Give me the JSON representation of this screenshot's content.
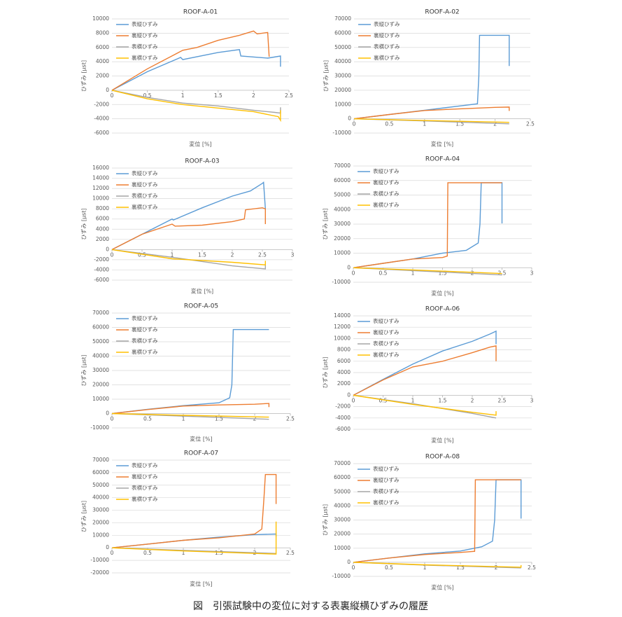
{
  "chart_data": [
    {
      "type": "line",
      "title": "ROOF-A-01",
      "x_label": "変位 [%]",
      "y_label": "ひずみ [μst]",
      "xlim": [
        0,
        2.5
      ],
      "xticks": [
        0,
        0.5,
        1,
        1.5,
        2,
        2.5
      ],
      "ylim": [
        -6000,
        10000
      ],
      "yticks": [
        -6000,
        -4000,
        -2000,
        0,
        2000,
        4000,
        6000,
        8000,
        10000
      ],
      "grid": true,
      "series": [
        {
          "name": "表縦ひずみ",
          "color": "#5b9bd5",
          "x": [
            0,
            0.5,
            0.97,
            1.0,
            1.5,
            1.8,
            1.82,
            2.2,
            2.38,
            2.38
          ],
          "values": [
            0,
            2600,
            4600,
            4300,
            5300,
            5700,
            4800,
            4500,
            4800,
            3300
          ]
        },
        {
          "name": "裏縦ひずみ",
          "color": "#ed7d31",
          "x": [
            0,
            0.5,
            1.0,
            1.2,
            1.5,
            1.8,
            2.0,
            2.05,
            2.2,
            2.22
          ],
          "values": [
            0,
            3000,
            5600,
            6000,
            7000,
            7700,
            8300,
            7900,
            8100,
            4700
          ]
        },
        {
          "name": "表横ひずみ",
          "color": "#a5a5a5",
          "x": [
            0,
            0.5,
            1.0,
            1.5,
            2.0,
            2.3,
            2.38,
            2.38
          ],
          "values": [
            0,
            -1000,
            -1800,
            -2200,
            -2800,
            -3100,
            -3200,
            -2400
          ]
        },
        {
          "name": "裏横ひずみ",
          "color": "#ffc000",
          "x": [
            0,
            0.5,
            1.0,
            1.5,
            2.0,
            2.35,
            2.38,
            2.38
          ],
          "values": [
            0,
            -1200,
            -2000,
            -2500,
            -3000,
            -3700,
            -4200,
            -2800
          ]
        }
      ]
    },
    {
      "type": "line",
      "title": "ROOF-A-02",
      "x_label": "変位 [%]",
      "y_label": "ひずみ [μst]",
      "xlim": [
        0,
        2.5
      ],
      "xticks": [
        0,
        0.5,
        1,
        1.5,
        2,
        2.5
      ],
      "ylim": [
        -10000,
        70000
      ],
      "yticks": [
        -10000,
        0,
        10000,
        20000,
        30000,
        40000,
        50000,
        60000,
        70000
      ],
      "grid": true,
      "series": [
        {
          "name": "表縦ひずみ",
          "color": "#5b9bd5",
          "x": [
            0,
            0.5,
            1.0,
            1.5,
            1.75,
            1.77,
            1.78,
            2.2,
            2.2
          ],
          "values": [
            0,
            3000,
            6000,
            9000,
            10500,
            30000,
            58500,
            58500,
            37000
          ]
        },
        {
          "name": "裏縦ひずみ",
          "color": "#ed7d31",
          "x": [
            0,
            0.5,
            1.0,
            1.5,
            2.0,
            2.2,
            2.2
          ],
          "values": [
            0,
            3000,
            5800,
            7000,
            8000,
            8200,
            5500
          ]
        },
        {
          "name": "表横ひずみ",
          "color": "#a5a5a5",
          "x": [
            0,
            1,
            2.2
          ],
          "values": [
            0,
            -1500,
            -3500
          ]
        },
        {
          "name": "裏横ひずみ",
          "color": "#ffc000",
          "x": [
            0,
            1,
            2.2
          ],
          "values": [
            0,
            -1200,
            -2500
          ]
        }
      ]
    },
    {
      "type": "line",
      "title": "ROOF-A-03",
      "x_label": "変位 [%]",
      "y_label": "ひずみ [μst]",
      "xlim": [
        0,
        3
      ],
      "xticks": [
        0,
        0.5,
        1,
        1.5,
        2,
        2.5,
        3
      ],
      "ylim": [
        -6000,
        16000
      ],
      "yticks": [
        -6000,
        -4000,
        -2000,
        0,
        2000,
        4000,
        6000,
        8000,
        10000,
        12000,
        14000,
        16000
      ],
      "grid": true,
      "series": [
        {
          "name": "表縦ひずみ",
          "color": "#5b9bd5",
          "x": [
            0,
            0.5,
            1.0,
            1.02,
            1.5,
            2.0,
            2.3,
            2.5,
            2.52,
            2.55
          ],
          "values": [
            0,
            3000,
            6000,
            5800,
            8200,
            10500,
            11500,
            13000,
            13200,
            8000
          ]
        },
        {
          "name": "裏縦ひずみ",
          "color": "#ed7d31",
          "x": [
            0,
            0.5,
            1.0,
            1.05,
            1.5,
            2.0,
            2.2,
            2.22,
            2.5,
            2.55,
            2.55
          ],
          "values": [
            0,
            3000,
            5000,
            4600,
            4800,
            5500,
            6000,
            7800,
            8200,
            8000,
            5000
          ]
        },
        {
          "name": "表横ひずみ",
          "color": "#a5a5a5",
          "x": [
            0,
            1,
            2,
            2.55,
            2.55
          ],
          "values": [
            0,
            -1500,
            -3200,
            -3800,
            -3000
          ]
        },
        {
          "name": "裏横ひずみ",
          "color": "#ffc000",
          "x": [
            0,
            1,
            2,
            2.55,
            2.55
          ],
          "values": [
            0,
            -1800,
            -2500,
            -3000,
            -2200
          ]
        }
      ]
    },
    {
      "type": "line",
      "title": "ROOF-A-04",
      "x_label": "変位 [%]",
      "y_label": "ひずみ [μst]",
      "xlim": [
        0,
        3
      ],
      "xticks": [
        0,
        0.5,
        1,
        1.5,
        2,
        2.5,
        3
      ],
      "ylim": [
        -10000,
        70000
      ],
      "yticks": [
        -10000,
        0,
        10000,
        20000,
        30000,
        40000,
        50000,
        60000,
        70000
      ],
      "grid": true,
      "series": [
        {
          "name": "表縦ひずみ",
          "color": "#5b9bd5",
          "x": [
            0,
            0.5,
            1.0,
            1.5,
            1.9,
            2.1,
            2.13,
            2.15,
            2.5,
            2.5
          ],
          "values": [
            0,
            3000,
            6000,
            10000,
            12000,
            17000,
            30000,
            58500,
            58500,
            30500
          ]
        },
        {
          "name": "裏縦ひずみ",
          "color": "#ed7d31",
          "x": [
            0,
            0.5,
            1.0,
            1.5,
            1.58,
            1.59,
            2.5
          ],
          "values": [
            0,
            3000,
            6000,
            7000,
            8000,
            58500,
            58500
          ]
        },
        {
          "name": "表横ひずみ",
          "color": "#a5a5a5",
          "x": [
            0,
            1,
            2.5
          ],
          "values": [
            0,
            -2000,
            -5000
          ]
        },
        {
          "name": "裏横ひずみ",
          "color": "#ffc000",
          "x": [
            0,
            1,
            2.5
          ],
          "values": [
            0,
            -1500,
            -4000
          ]
        }
      ]
    },
    {
      "type": "line",
      "title": "ROOF-A-05",
      "x_label": "変位 [%]",
      "y_label": "ひずみ [μst]",
      "xlim": [
        0,
        2.5
      ],
      "xticks": [
        0,
        0.5,
        1,
        1.5,
        2,
        2.5
      ],
      "ylim": [
        -10000,
        70000
      ],
      "yticks": [
        -10000,
        0,
        10000,
        20000,
        30000,
        40000,
        50000,
        60000,
        70000
      ],
      "grid": true,
      "series": [
        {
          "name": "表縦ひずみ",
          "color": "#5b9bd5",
          "x": [
            0,
            0.5,
            1.0,
            1.5,
            1.65,
            1.68,
            1.7,
            2.2
          ],
          "values": [
            0,
            3000,
            5500,
            7500,
            11000,
            20000,
            58500,
            58500
          ]
        },
        {
          "name": "裏縦ひずみ",
          "color": "#ed7d31",
          "x": [
            0,
            0.5,
            1.0,
            1.5,
            2.0,
            2.2,
            2.2
          ],
          "values": [
            0,
            2800,
            5200,
            6000,
            6500,
            7000,
            4500
          ]
        },
        {
          "name": "表横ひずみ",
          "color": "#a5a5a5",
          "x": [
            0,
            1,
            2.2
          ],
          "values": [
            0,
            -1800,
            -4000
          ]
        },
        {
          "name": "裏横ひずみ",
          "color": "#ffc000",
          "x": [
            0,
            1,
            2.2
          ],
          "values": [
            0,
            -1200,
            -2500
          ]
        }
      ]
    },
    {
      "type": "line",
      "title": "ROOF-A-06",
      "x_label": "変位 [%]",
      "y_label": "ひずみ [μst]",
      "xlim": [
        0,
        3
      ],
      "xticks": [
        0,
        0.5,
        1,
        1.5,
        2,
        2.5,
        3
      ],
      "ylim": [
        -6000,
        14000
      ],
      "yticks": [
        -6000,
        -4000,
        -2000,
        0,
        2000,
        4000,
        6000,
        8000,
        10000,
        12000,
        14000
      ],
      "grid": true,
      "series": [
        {
          "name": "表縦ひずみ",
          "color": "#5b9bd5",
          "x": [
            0,
            0.5,
            1.0,
            1.5,
            2.0,
            2.3,
            2.4,
            2.4
          ],
          "values": [
            0,
            2800,
            5500,
            7800,
            9500,
            10800,
            11300,
            9000
          ]
        },
        {
          "name": "裏縦ひずみ",
          "color": "#ed7d31",
          "x": [
            0,
            0.5,
            1.0,
            1.5,
            2.0,
            2.3,
            2.4,
            2.4
          ],
          "values": [
            0,
            2700,
            5000,
            6000,
            7500,
            8500,
            8700,
            6000
          ]
        },
        {
          "name": "表横ひずみ",
          "color": "#a5a5a5",
          "x": [
            0,
            1,
            2,
            2.4
          ],
          "values": [
            0,
            -1500,
            -3200,
            -4000
          ]
        },
        {
          "name": "裏横ひずみ",
          "color": "#ffc000",
          "x": [
            0,
            1,
            2,
            2.4,
            2.4
          ],
          "values": [
            0,
            -1600,
            -3000,
            -3500,
            -2800
          ]
        }
      ]
    },
    {
      "type": "line",
      "title": "ROOF-A-07",
      "x_label": "変位 [%]",
      "y_label": "ひずみ [μst]",
      "xlim": [
        0,
        2.5
      ],
      "xticks": [
        0,
        0.5,
        1,
        1.5,
        2,
        2.5
      ],
      "ylim": [
        -20000,
        70000
      ],
      "yticks": [
        -20000,
        -10000,
        0,
        10000,
        20000,
        30000,
        40000,
        50000,
        60000,
        70000
      ],
      "grid": true,
      "series": [
        {
          "name": "表縦ひずみ",
          "color": "#5b9bd5",
          "x": [
            0,
            0.5,
            1.0,
            1.5,
            2.0,
            2.3,
            2.3
          ],
          "values": [
            0,
            3000,
            6000,
            8500,
            10500,
            11000,
            9000
          ]
        },
        {
          "name": "裏縦ひずみ",
          "color": "#ed7d31",
          "x": [
            0,
            0.5,
            1.0,
            1.5,
            2.0,
            2.1,
            2.13,
            2.15,
            2.3,
            2.3
          ],
          "values": [
            0,
            3000,
            6000,
            8000,
            11000,
            15000,
            40000,
            58500,
            58500,
            35000
          ]
        },
        {
          "name": "表横ひずみ",
          "color": "#a5a5a5",
          "x": [
            0,
            1,
            2.3
          ],
          "values": [
            0,
            -2000,
            -4500
          ]
        },
        {
          "name": "裏横ひずみ",
          "color": "#ffc000",
          "x": [
            0,
            1,
            2.3,
            2.3
          ],
          "values": [
            0,
            -2500,
            -5000,
            21000
          ]
        }
      ]
    },
    {
      "type": "line",
      "title": "ROOF-A-08",
      "x_label": "変位 [%]",
      "y_label": "ひずみ [μst]",
      "xlim": [
        0,
        2.5
      ],
      "xticks": [
        0,
        0.5,
        1,
        1.5,
        2,
        2.5
      ],
      "ylim": [
        -10000,
        70000
      ],
      "yticks": [
        -10000,
        0,
        10000,
        20000,
        30000,
        40000,
        50000,
        60000,
        70000
      ],
      "grid": true,
      "series": [
        {
          "name": "表縦ひずみ",
          "color": "#5b9bd5",
          "x": [
            0,
            0.5,
            1.0,
            1.5,
            1.8,
            1.95,
            1.98,
            2.0,
            2.35,
            2.35
          ],
          "values": [
            0,
            3000,
            6000,
            8000,
            11000,
            15000,
            30000,
            58500,
            58500,
            31000
          ]
        },
        {
          "name": "裏縦ひずみ",
          "color": "#ed7d31",
          "x": [
            0,
            0.5,
            1.0,
            1.5,
            1.7,
            1.71,
            2.35
          ],
          "values": [
            0,
            3000,
            5500,
            7000,
            7800,
            58500,
            58500
          ]
        },
        {
          "name": "表横ひずみ",
          "color": "#a5a5a5",
          "x": [
            0,
            1,
            2.35
          ],
          "values": [
            0,
            -2000,
            -4000
          ]
        },
        {
          "name": "裏横ひずみ",
          "color": "#ffc000",
          "x": [
            0,
            1,
            2.35,
            2.35
          ],
          "values": [
            0,
            -1800,
            -3500,
            -2000
          ]
        }
      ]
    }
  ],
  "caption": "図　引張試験中の変位に対する表裏縦横ひずみの履歴"
}
